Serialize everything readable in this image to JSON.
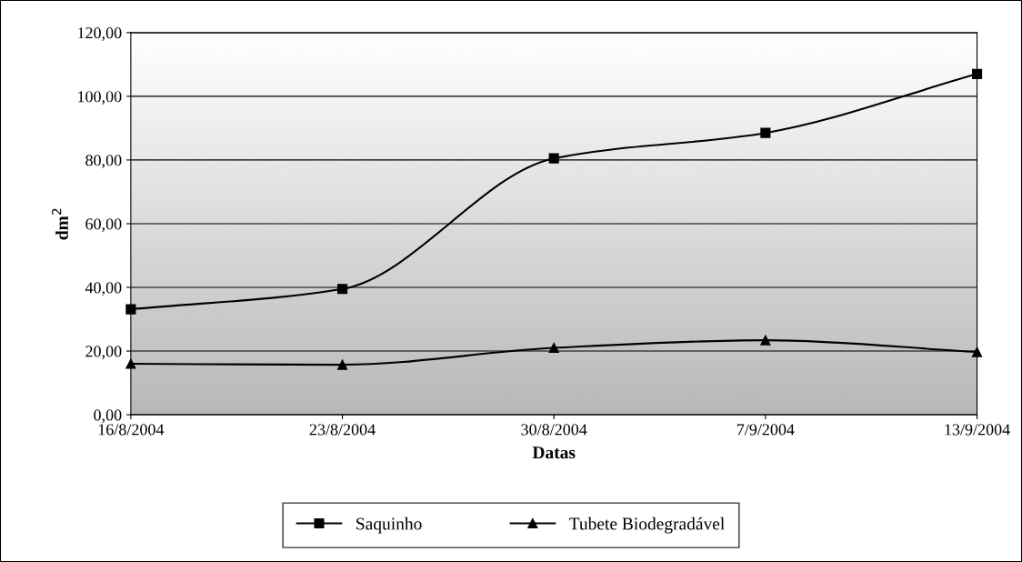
{
  "chart_data": {
    "type": "line",
    "xlabel": "Datas",
    "ylabel": "dm$^{2}$",
    "categories": [
      "16/8/2004",
      "23/8/2004",
      "30/8/2004",
      "7/9/2004",
      "13/9/2004"
    ],
    "series": [
      {
        "name": "Saquinho",
        "color": "#000000",
        "marker": "square",
        "values": [
          33.1,
          39.5,
          80.5,
          88.5,
          107.0
        ]
      },
      {
        "name": "Tubete Biodegradável",
        "color": "#000000",
        "marker": "triangle",
        "values": [
          16.0,
          15.7,
          21.0,
          23.4,
          19.7
        ]
      }
    ],
    "ylim": [
      0,
      120
    ],
    "yticks": [
      {
        "value": 0,
        "label": "0,00"
      },
      {
        "value": 20,
        "label": "20,00"
      },
      {
        "value": 40,
        "label": "40,00"
      },
      {
        "value": 60,
        "label": "60,00"
      },
      {
        "value": 80,
        "label": "80,00"
      },
      {
        "value": 100,
        "label": "100,00"
      },
      {
        "value": 120,
        "label": "120,00"
      }
    ],
    "grid": "y",
    "legend": "bottom",
    "line_style": "solid"
  }
}
